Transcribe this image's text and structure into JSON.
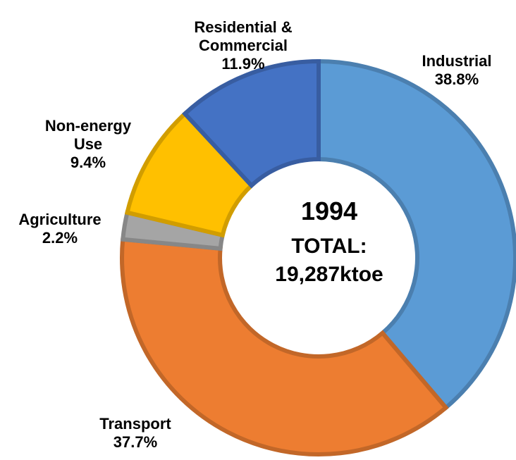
{
  "chart_data": {
    "type": "pie",
    "donut": true,
    "categories": [
      "Industrial",
      "Transport",
      "Agriculture",
      "Non-energy Use",
      "Residential & Commercial"
    ],
    "values": [
      38.8,
      37.7,
      2.2,
      9.4,
      11.9
    ],
    "value_labels": [
      "38.8%",
      "37.7%",
      "2.2%",
      "9.4%",
      "11.9%"
    ],
    "colors": [
      "#5b9bd5",
      "#ed7d31",
      "#a5a5a5",
      "#ffc000",
      "#4472c4"
    ],
    "annotations": [
      "1994",
      "TOTAL:",
      "19,287ktoe"
    ]
  }
}
